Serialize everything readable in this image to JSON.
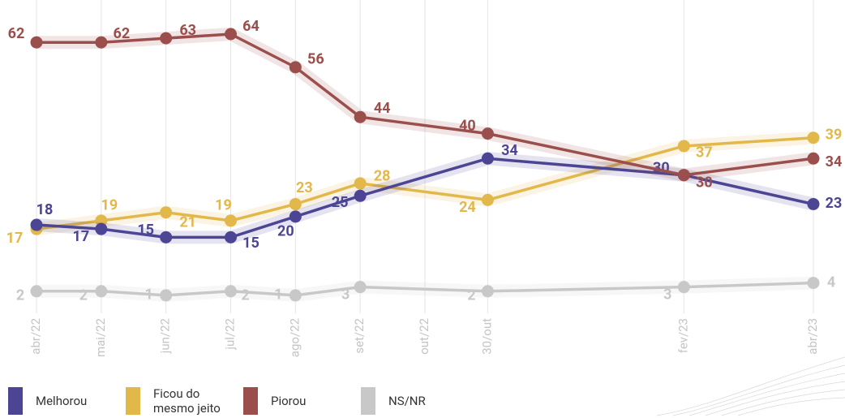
{
  "chart_data": {
    "type": "line",
    "x": [
      0,
      1,
      2,
      3,
      4,
      5,
      6.97,
      10,
      12
    ],
    "xlim": [
      0,
      12
    ],
    "xticks": [
      {
        "value": 0,
        "label": "abr/22"
      },
      {
        "value": 1,
        "label": "mai/22"
      },
      {
        "value": 2,
        "label": "jun/22"
      },
      {
        "value": 3,
        "label": "jul/22"
      },
      {
        "value": 4,
        "label": "ago/22"
      },
      {
        "value": 5,
        "label": "set/22"
      },
      {
        "value": 6,
        "label": "out/22"
      },
      {
        "value": 6.97,
        "label": "30/out"
      },
      {
        "value": 10,
        "label": "fev/23"
      },
      {
        "value": 12,
        "label": "abr/23"
      }
    ],
    "ylim": [
      0,
      64
    ],
    "grid": true,
    "series": [
      {
        "name": "Melhorou",
        "color": "#4b4594",
        "values": [
          18,
          17,
          15,
          15,
          20,
          25,
          34,
          30,
          23
        ]
      },
      {
        "name": "Ficou do mesmo jeito",
        "color": "#e2b84a",
        "values": [
          17,
          19,
          21,
          19,
          23,
          28,
          24,
          37,
          39
        ]
      },
      {
        "name": "Piorou",
        "color": "#9b4f4c",
        "values": [
          62,
          62,
          63,
          64,
          56,
          44,
          40,
          30,
          34
        ]
      },
      {
        "name": "NS/NR",
        "color": "#c8c8c8",
        "values": [
          2,
          2,
          1,
          2,
          1,
          3,
          2,
          3,
          4
        ]
      }
    ]
  }
}
